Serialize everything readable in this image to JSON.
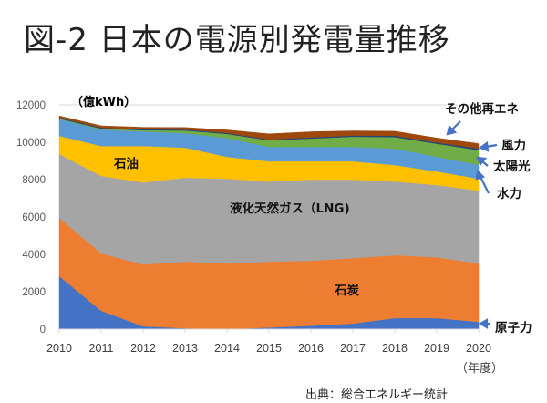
{
  "title": "図-2 日本の電源別発電量推移",
  "source": "出典：総合エネルギー統計",
  "chart_data": {
    "type": "area",
    "stacked": true,
    "title": "図-2 日本の電源別発電量推移",
    "ylabel": "（億kWh）",
    "xlabel": "（年度）",
    "ylim": [
      0,
      12000
    ],
    "yticks": [
      0,
      2000,
      4000,
      6000,
      8000,
      10000,
      12000
    ],
    "grid": true,
    "categories": [
      "2010",
      "2011",
      "2012",
      "2013",
      "2014",
      "2015",
      "2016",
      "2017",
      "2018",
      "2019",
      "2020"
    ],
    "series": [
      {
        "name": "原子力",
        "color": "#4472c4",
        "values": [
          2830,
          980,
          150,
          50,
          0,
          90,
          180,
          300,
          590,
          590,
          390
        ]
      },
      {
        "name": "石炭",
        "color": "#ed7d31",
        "values": [
          3120,
          3070,
          3310,
          3560,
          3510,
          3520,
          3480,
          3500,
          3360,
          3260,
          3120
        ]
      },
      {
        "name": "液化天然ガス（LNG)",
        "color": "#a5a5a5",
        "values": [
          3420,
          4150,
          4390,
          4490,
          4540,
          4290,
          4340,
          4200,
          3950,
          3860,
          3900
        ]
      },
      {
        "name": "石油",
        "color": "#ffc000",
        "values": [
          970,
          1600,
          1950,
          1610,
          1170,
          1080,
          980,
          980,
          880,
          730,
          640
        ]
      },
      {
        "name": "水力",
        "color": "#5b9bd5",
        "values": [
          900,
          880,
          780,
          780,
          1000,
          770,
          770,
          770,
          880,
          790,
          740
        ]
      },
      {
        "name": "太陽光",
        "color": "#70ad47",
        "values": [
          30,
          50,
          70,
          140,
          230,
          350,
          450,
          550,
          620,
          690,
          790
        ]
      },
      {
        "name": "風力",
        "color": "#264478",
        "values": [
          40,
          50,
          50,
          50,
          50,
          50,
          60,
          60,
          70,
          70,
          90
        ]
      },
      {
        "name": "その他再エネ",
        "color": "#9e480e",
        "values": [
          100,
          100,
          100,
          110,
          160,
          300,
          300,
          250,
          240,
          240,
          250
        ]
      }
    ],
    "annotations": [
      {
        "text": "石油",
        "series": "石油"
      },
      {
        "text": "液化天然ガス（LNG)",
        "series": "液化天然ガス（LNG)"
      },
      {
        "text": "石炭",
        "series": "石炭"
      },
      {
        "text": "その他再エネ",
        "series": "その他再エネ"
      },
      {
        "text": "風力",
        "series": "風力"
      },
      {
        "text": "太陽光",
        "series": "太陽光"
      },
      {
        "text": "水力",
        "series": "水力"
      },
      {
        "text": "原子力",
        "series": "原子力"
      }
    ]
  }
}
